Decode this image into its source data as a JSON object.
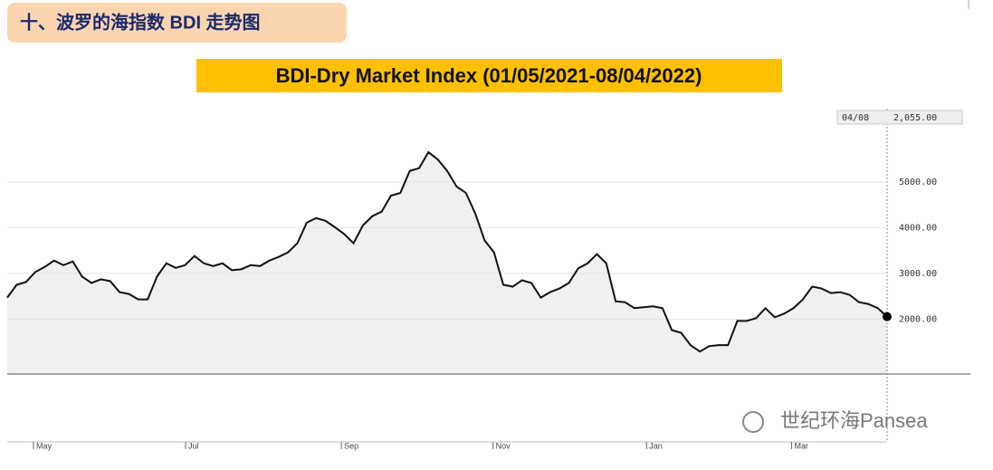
{
  "header": "十、波罗的海指数 BDI 走势图",
  "chart_data": {
    "type": "line",
    "title": "BDI-Dry Market Index (01/05/2021-08/04/2022)",
    "annotations": [
      "04/08",
      "2,055.00"
    ],
    "watermark": "世纪环海Pansea",
    "color": "#111111",
    "area_color": "#f0f0f0",
    "grid": true,
    "values": [
      2470,
      2750,
      2810,
      3030,
      3140,
      3280,
      3180,
      3260,
      2930,
      2790,
      2870,
      2830,
      2590,
      2550,
      2430,
      2430,
      2930,
      3220,
      3120,
      3180,
      3380,
      3220,
      3160,
      3220,
      3070,
      3090,
      3180,
      3160,
      3280,
      3360,
      3460,
      3660,
      4110,
      4210,
      4150,
      4010,
      3860,
      3660,
      4050,
      4250,
      4350,
      4700,
      4760,
      5240,
      5300,
      5650,
      5490,
      5240,
      4900,
      4760,
      4310,
      3720,
      3460,
      2750,
      2710,
      2850,
      2790,
      2470,
      2590,
      2670,
      2790,
      3110,
      3220,
      3420,
      3220,
      2390,
      2370,
      2240,
      2260,
      2280,
      2240,
      1760,
      1700,
      1430,
      1290,
      1410,
      1430,
      1430,
      1960,
      1960,
      2020,
      2240,
      2040,
      2120,
      2240,
      2430,
      2710,
      2670,
      2570,
      2590,
      2530,
      2370,
      2330,
      2240,
      2055
    ],
    "xlim": [
      0,
      94
    ],
    "xticks": [
      {
        "value": 2.8,
        "label": "May"
      },
      {
        "value": 19.05,
        "label": "Jul"
      },
      {
        "value": 35.7,
        "label": "Sep"
      },
      {
        "value": 51.9,
        "label": "Nov"
      },
      {
        "value": 68.3,
        "label": "Jan"
      },
      {
        "value": 83.8,
        "label": "Mar"
      }
    ],
    "ylim": [
      800,
      6700
    ],
    "yticks": [
      {
        "value": 2000,
        "label": "2000.00"
      },
      {
        "value": 3000,
        "label": "3000.00"
      },
      {
        "value": 4000,
        "label": "4000.00"
      },
      {
        "value": 5000,
        "label": "5000.00"
      }
    ]
  }
}
